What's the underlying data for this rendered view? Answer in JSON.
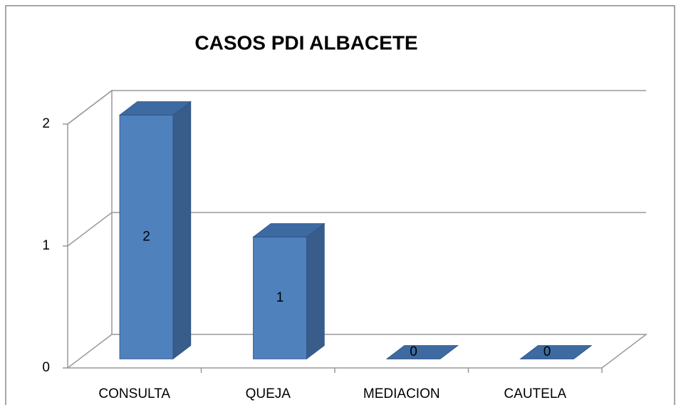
{
  "chart_data": {
    "type": "bar",
    "title": "CASOS PDI ALBACETE",
    "categories": [
      "CONSULTA",
      "QUEJA",
      "MEDIACION",
      "CAUTELA"
    ],
    "values": [
      2,
      1,
      0,
      0
    ],
    "color": "#4f81bd",
    "ylim": [
      0,
      2
    ],
    "yticks": [
      0,
      1,
      2
    ],
    "grid": true
  }
}
